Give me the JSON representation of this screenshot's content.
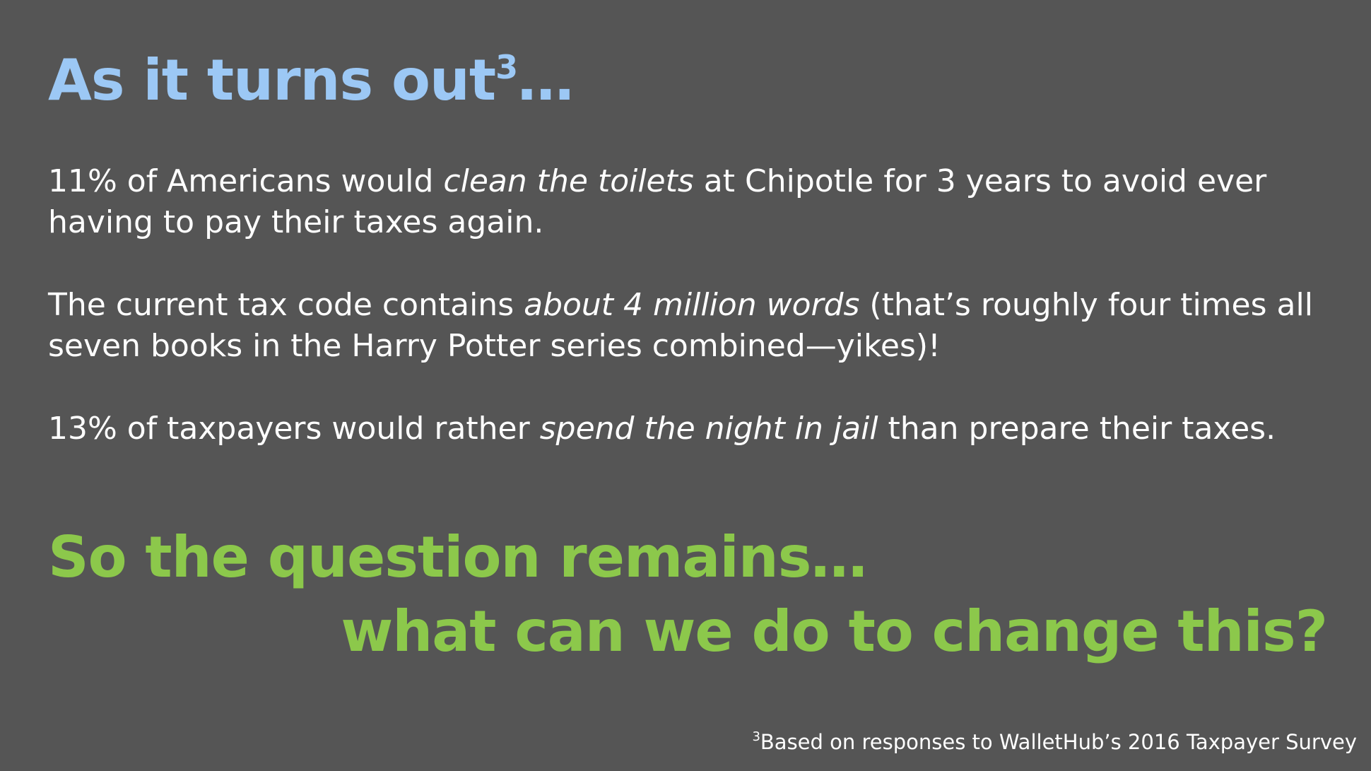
{
  "title": {
    "text": "As it turns out",
    "superscript": "3",
    "ellipsis": "…"
  },
  "facts": [
    {
      "before": "11% of Americans would ",
      "emphasis": "clean the toilets",
      "after": " at Chipotle for 3 years to avoid ever having to pay their taxes again."
    },
    {
      "before": "The current tax code contains ",
      "emphasis": "about 4 million words",
      "after": " (that’s roughly four times all seven books in the Harry Potter series combined—yikes)!"
    },
    {
      "before": "13% of taxpayers would rather ",
      "emphasis": "spend the night in jail",
      "after": " than prepare their taxes."
    }
  ],
  "question": {
    "line1": "So the question remains…",
    "line2": "what can we do to change this?"
  },
  "footnote": {
    "marker": "3",
    "text": "Based on responses to WalletHub’s 2016 Taxpayer Survey"
  },
  "colors": {
    "background": "#555555",
    "title": "#9cc8f5",
    "body": "#ffffff",
    "question": "#8cc84b"
  }
}
